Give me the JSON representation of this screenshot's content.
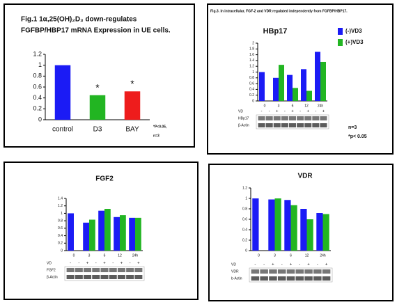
{
  "chart_data": [
    {
      "type": "bar",
      "title": "Fig.1 1α,25(OH)₂D₃ down-regulates",
      "subtitle": "FGFBP/HBP17 mRNA Expression in UE cells.",
      "categories": [
        "control",
        "D3",
        "BAY"
      ],
      "values": [
        1.0,
        0.45,
        0.52
      ],
      "colors": [
        "#1b1bf5",
        "#22b522",
        "#ee1c1c"
      ],
      "significance": [
        null,
        "*",
        "*"
      ],
      "ylim": [
        0,
        1.2
      ],
      "yticks": [
        0,
        0.2,
        0.4,
        0.6,
        0.8,
        1,
        1.2
      ],
      "notes": [
        "*P<0.05,",
        "n=3"
      ]
    },
    {
      "type": "bar",
      "figure_title": "Fig.3. In intracellular, FGF-2 and VDR regulated independently from FGFBP/HBP17.",
      "title": "HBp17",
      "categories": [
        "0",
        "3",
        "6",
        "12",
        "24h"
      ],
      "series": [
        {
          "name": "(-)VD3",
          "color": "#1b1bf5",
          "values": [
            1.0,
            0.8,
            0.9,
            1.1,
            1.7
          ]
        },
        {
          "name": "(+)VD3",
          "color": "#22b522",
          "values": [
            null,
            1.25,
            0.45,
            0.35,
            1.35
          ]
        }
      ],
      "ylim": [
        0,
        2
      ],
      "yticks": [
        0,
        0.2,
        0.4,
        0.6,
        0.8,
        1,
        1.2,
        1.4,
        1.6,
        1.8,
        2
      ],
      "legend": true,
      "blot": {
        "row_labels": [
          "VD",
          "HBp17",
          "β-Actin"
        ],
        "lanes": [
          "-",
          "-",
          "+",
          "-",
          "+",
          "-",
          "+",
          "-",
          "+"
        ]
      },
      "notes": [
        "n=3",
        "*p< 0.05"
      ]
    },
    {
      "type": "bar",
      "title": "FGF2",
      "categories": [
        "0",
        "3",
        "6",
        "12",
        "24h"
      ],
      "series": [
        {
          "color": "#1b1bf5",
          "values": [
            1.0,
            0.75,
            1.07,
            0.9,
            0.88
          ]
        },
        {
          "color": "#22b522",
          "values": [
            null,
            0.83,
            1.12,
            0.95,
            0.88
          ]
        }
      ],
      "ylim": [
        0,
        1.4
      ],
      "yticks": [
        0,
        0.2,
        0.4,
        0.6,
        0.8,
        1,
        1.2,
        1.4
      ],
      "blot": {
        "row_labels": [
          "VD",
          "FGF2",
          "β-Actin"
        ],
        "lanes": [
          "-",
          "-",
          "+",
          "-",
          "+",
          "-",
          "+",
          "-",
          "+"
        ]
      }
    },
    {
      "type": "bar",
      "title": "VDR",
      "categories": [
        "0",
        "3",
        "6",
        "12",
        "24h"
      ],
      "series": [
        {
          "color": "#1b1bf5",
          "values": [
            1.0,
            0.98,
            0.97,
            0.8,
            0.72
          ]
        },
        {
          "color": "#22b522",
          "values": [
            null,
            1.0,
            0.87,
            0.6,
            0.7
          ]
        }
      ],
      "ylim": [
        0,
        1.2
      ],
      "yticks": [
        0,
        0.2,
        0.4,
        0.6,
        0.8,
        1,
        1.2
      ],
      "blot": {
        "row_labels": [
          "VD",
          "VDR",
          "b-Actin"
        ],
        "lanes": [
          "-",
          "-",
          "+",
          "-",
          "+",
          "-",
          "+",
          "-",
          "+"
        ]
      }
    }
  ]
}
